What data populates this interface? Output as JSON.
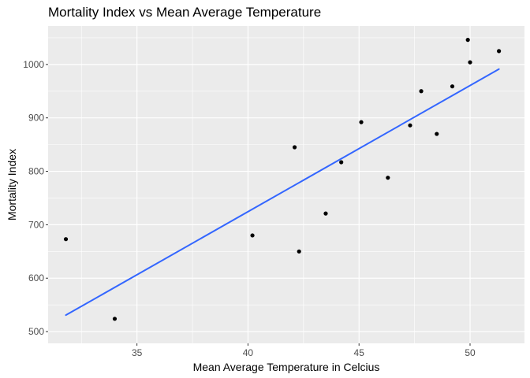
{
  "chart_data": {
    "type": "scatter",
    "title": "Mortality Index vs Mean Average Temperature",
    "xlabel": "Mean Average Temperature in Celcius",
    "ylabel": "Mortality Index",
    "xlim": [
      31.0,
      52.45
    ],
    "ylim": [
      478,
      1072
    ],
    "x_ticks": [
      35,
      40,
      45,
      50
    ],
    "y_ticks": [
      500,
      600,
      700,
      800,
      900,
      1000
    ],
    "grid": true,
    "background_color": "#ebebeb",
    "grid_color": "#ffffff",
    "point_color": "#000000",
    "series": [
      {
        "x": [
          31.8,
          34.0,
          40.2,
          42.1,
          42.3,
          43.5,
          44.2,
          45.1,
          46.3,
          47.3,
          47.8,
          48.5,
          49.2,
          49.9,
          50.0,
          51.3
        ],
        "y": [
          673,
          524,
          680,
          845,
          650,
          721,
          817,
          892,
          788,
          886,
          950,
          870,
          959,
          1046,
          1004,
          1025
        ]
      }
    ],
    "trend_line": {
      "type": "linear",
      "color": "#3366ff",
      "x": [
        31.8,
        51.3
      ],
      "y": [
        530.8,
        991.3
      ]
    }
  }
}
